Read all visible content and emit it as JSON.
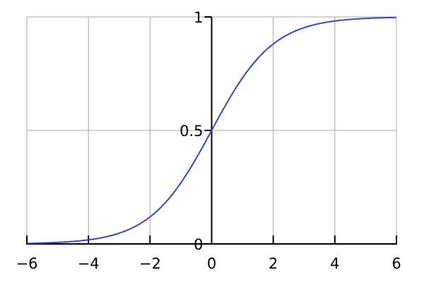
{
  "chart_data": {
    "type": "line",
    "title": "",
    "xlabel": "",
    "ylabel": "",
    "xlim": [
      -6,
      6
    ],
    "ylim": [
      0,
      1
    ],
    "grid": true,
    "x_ticks": [
      "−6",
      "−4",
      "−2",
      "0",
      "2",
      "4",
      "6"
    ],
    "x_tick_values": [
      -6,
      -4,
      -2,
      0,
      2,
      4,
      6
    ],
    "y_ticks": [
      "0",
      "0.5",
      "1"
    ],
    "y_tick_values": [
      0,
      0.5,
      1
    ],
    "series": [
      {
        "color": "#3548bb",
        "x": [
          -6,
          -5,
          -4,
          -3,
          -2,
          -1,
          0,
          1,
          2,
          3,
          4,
          5,
          6
        ],
        "y": [
          0.0025,
          0.0067,
          0.018,
          0.047,
          0.119,
          0.269,
          0.5,
          0.731,
          0.881,
          0.953,
          0.982,
          0.9933,
          0.9975
        ]
      }
    ],
    "colors": {
      "grid": "#a8a8a8",
      "axis": "#000000"
    }
  }
}
